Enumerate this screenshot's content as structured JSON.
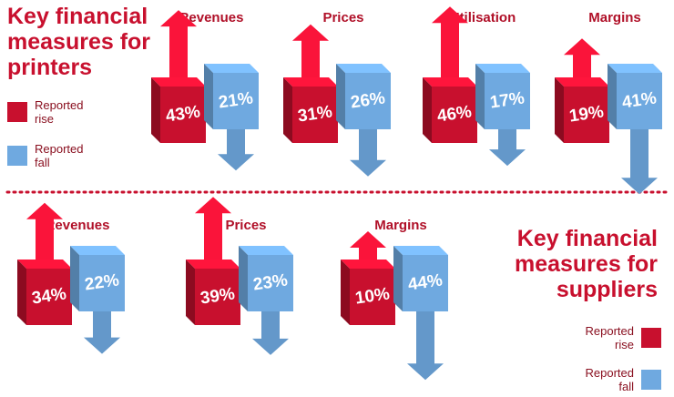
{
  "chart_data": [
    {
      "type": "arrow",
      "title": "Key financial measures for printers",
      "categories": [
        "Revenues",
        "Prices",
        "Utilisation",
        "Margins"
      ],
      "series": [
        {
          "name": "Reported rise",
          "color": "#c8102e",
          "values": [
            43,
            31,
            46,
            19
          ],
          "value_labels": [
            "43%",
            "31%",
            "46%",
            "19%"
          ]
        },
        {
          "name": "Reported fall",
          "color": "#6fa9e0",
          "values": [
            21,
            26,
            17,
            41
          ],
          "value_labels": [
            "21%",
            "26%",
            "17%",
            "41%"
          ]
        }
      ]
    },
    {
      "type": "arrow",
      "title": "Key financial measures for suppliers",
      "categories": [
        "Revenues",
        "Prices",
        "Margins"
      ],
      "series": [
        {
          "name": "Reported rise",
          "color": "#c8102e",
          "values": [
            34,
            39,
            10
          ],
          "value_labels": [
            "34%",
            "39%",
            "10%"
          ]
        },
        {
          "name": "Reported fall",
          "color": "#6fa9e0",
          "values": [
            22,
            23,
            44
          ],
          "value_labels": [
            "22%",
            "23%",
            "44%"
          ]
        }
      ]
    }
  ]
}
